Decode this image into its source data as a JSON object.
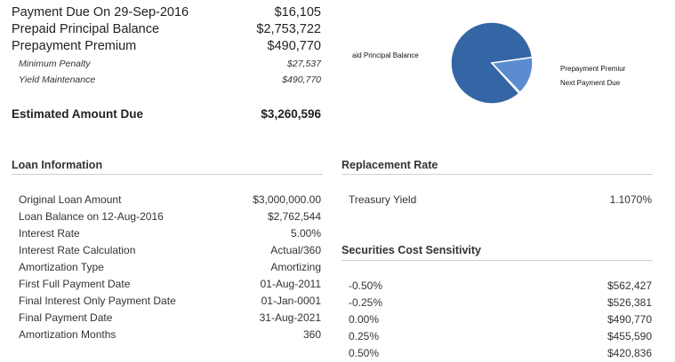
{
  "summary": {
    "rows": [
      {
        "label": "Payment Due On 29-Sep-2016",
        "value": "$16,105"
      },
      {
        "label": "Prepaid Principal Balance",
        "value": "$2,753,722"
      },
      {
        "label": "Prepayment Premium",
        "value": "$490,770"
      }
    ],
    "sub_rows": [
      {
        "label": "Minimum Penalty",
        "value": "$27,537"
      },
      {
        "label": "Yield Maintenance",
        "value": "$490,770"
      }
    ],
    "total": {
      "label": "Estimated Amount Due",
      "value": "$3,260,596"
    }
  },
  "chart_data": {
    "type": "pie",
    "labels": [
      "aid Principal Balance",
      "Prepayment Premiur",
      "Next Payment Due"
    ],
    "values": [
      2753722,
      490770,
      16105
    ],
    "colors": [
      "#3465a4",
      "#5b8ccf",
      "#ffffff"
    ]
  },
  "loan": {
    "title": "Loan Information",
    "rows": [
      {
        "label": "Original Loan Amount",
        "value": "$3,000,000.00"
      },
      {
        "label": "Loan Balance on 12-Aug-2016",
        "value": "$2,762,544"
      },
      {
        "label": "Interest Rate",
        "value": "5.00%"
      },
      {
        "label": "Interest Rate Calculation",
        "value": "Actual/360"
      },
      {
        "label": "Amortization Type",
        "value": "Amortizing"
      },
      {
        "label": "First Full Payment Date",
        "value": "01-Aug-2011"
      },
      {
        "label": "Final Interest Only Payment Date",
        "value": "01-Jan-0001"
      },
      {
        "label": "Final Payment Date",
        "value": "31-Aug-2021"
      },
      {
        "label": "Amortization Months",
        "value": "360"
      }
    ]
  },
  "replacement": {
    "title": "Replacement Rate",
    "label": "Treasury Yield",
    "value": "1.1070%"
  },
  "sensitivity": {
    "title": "Securities Cost Sensitivity",
    "rows": [
      {
        "label": "-0.50%",
        "value": "$562,427"
      },
      {
        "label": "-0.25%",
        "value": "$526,381"
      },
      {
        "label": "0.00%",
        "value": "$490,770"
      },
      {
        "label": "0.25%",
        "value": "$455,590"
      },
      {
        "label": "0.50%",
        "value": "$420,836"
      }
    ]
  }
}
